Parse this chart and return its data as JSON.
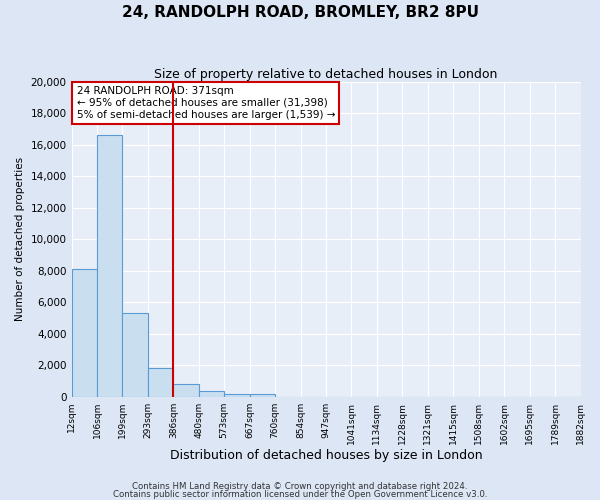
{
  "title": "24, RANDOLPH ROAD, BROMLEY, BR2 8PU",
  "subtitle": "Size of property relative to detached houses in London",
  "xlabel": "Distribution of detached houses by size in London",
  "ylabel": "Number of detached properties",
  "bin_labels": [
    "12sqm",
    "106sqm",
    "199sqm",
    "293sqm",
    "386sqm",
    "480sqm",
    "573sqm",
    "667sqm",
    "760sqm",
    "854sqm",
    "947sqm",
    "1041sqm",
    "1134sqm",
    "1228sqm",
    "1321sqm",
    "1415sqm",
    "1508sqm",
    "1602sqm",
    "1695sqm",
    "1789sqm",
    "1882sqm"
  ],
  "bar_values": [
    8100,
    16600,
    5300,
    1850,
    800,
    350,
    200,
    200,
    0,
    0,
    0,
    0,
    0,
    0,
    0,
    0,
    0,
    0,
    0,
    0
  ],
  "bar_color": "#c9dff0",
  "bar_edge_color": "#5b9bd5",
  "property_line_x": 4.0,
  "annotation_title": "24 RANDOLPH ROAD: 371sqm",
  "annotation_line1": "← 95% of detached houses are smaller (31,398)",
  "annotation_line2": "5% of semi-detached houses are larger (1,539) →",
  "annotation_box_facecolor": "#ffffff",
  "annotation_box_edgecolor": "#cc0000",
  "ylim": [
    0,
    20000
  ],
  "yticks": [
    0,
    2000,
    4000,
    6000,
    8000,
    10000,
    12000,
    14000,
    16000,
    18000,
    20000
  ],
  "background_color": "#dce6f5",
  "plot_background": "#e8eef8",
  "grid_color": "#ffffff",
  "vline_color": "#cc0000",
  "footer1": "Contains HM Land Registry data © Crown copyright and database right 2024.",
  "footer2": "Contains public sector information licensed under the Open Government Licence v3.0."
}
